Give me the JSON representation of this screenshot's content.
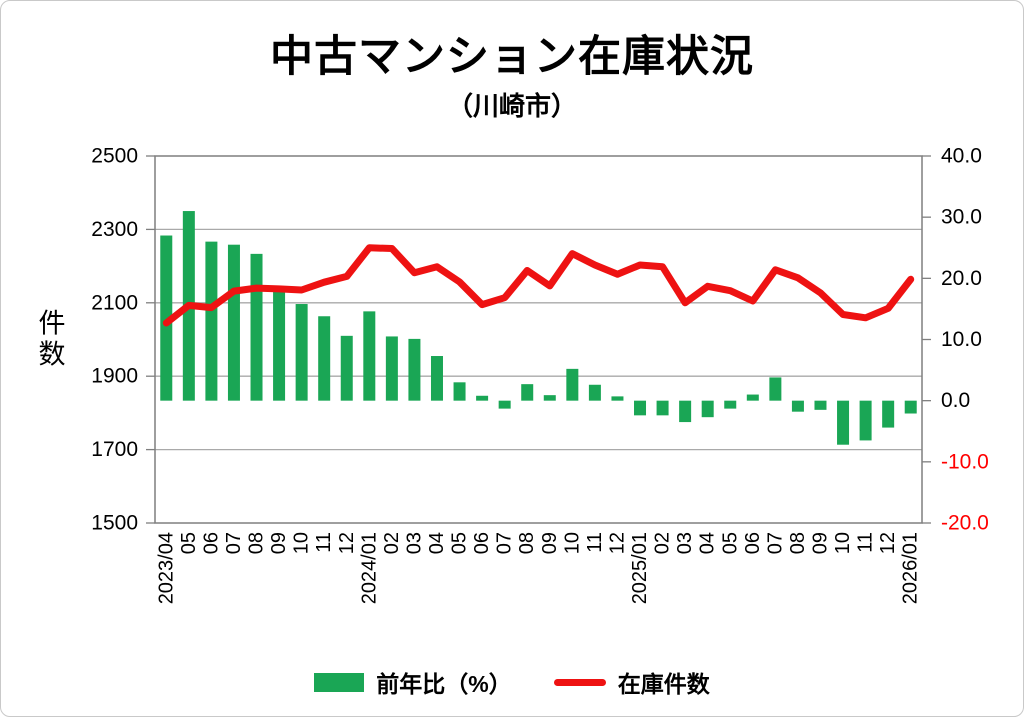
{
  "title": "中古マンション在庫状況",
  "subtitle": "（川崎市）",
  "colors": {
    "bar": "#1aa655",
    "line": "#ee1212",
    "negative_text": "#ff0000",
    "grid": "#a9a9a9",
    "border": "#7f7f7f",
    "text": "#000000"
  },
  "left_axis": {
    "label": "件数",
    "ticks": [
      "2500",
      "2300",
      "2100",
      "1900",
      "1700",
      "1500"
    ]
  },
  "right_axis": {
    "ticks": [
      "40.0",
      "30.0",
      "20.0",
      "10.0",
      "0.0",
      "-10.0",
      "-20.0"
    ]
  },
  "legend": [
    {
      "label": "前年比（%）",
      "type": "bar"
    },
    {
      "label": "在庫件数",
      "type": "line"
    }
  ],
  "chart_data": {
    "type": "combo",
    "title": "中古マンション在庫状況（川崎市）",
    "categories": [
      "2023/04",
      "05",
      "06",
      "07",
      "08",
      "09",
      "10",
      "11",
      "12",
      "2024/01",
      "02",
      "03",
      "04",
      "05",
      "06",
      "07",
      "08",
      "09",
      "10",
      "11",
      "12",
      "2025/01",
      "02",
      "03",
      "04",
      "05",
      "06",
      "07",
      "08",
      "09",
      "10",
      "11",
      "12",
      "2026/01"
    ],
    "series": [
      {
        "name": "前年比（%）",
        "type": "bar",
        "axis": "right",
        "values": [
          27.0,
          31.0,
          26.0,
          25.5,
          24.0,
          18.5,
          15.8,
          13.8,
          10.6,
          14.6,
          10.5,
          10.1,
          7.3,
          3.0,
          0.8,
          -1.3,
          2.7,
          0.9,
          5.2,
          2.6,
          0.7,
          -2.4,
          -2.4,
          -3.5,
          -2.7,
          -1.3,
          1.0,
          3.8,
          -1.8,
          -1.5,
          -7.2,
          -6.5,
          -4.4,
          -2.1
        ]
      },
      {
        "name": "在庫件数",
        "type": "line",
        "axis": "left",
        "values": [
          2045,
          2093,
          2087,
          2132,
          2140,
          2138,
          2135,
          2156,
          2172,
          2250,
          2248,
          2182,
          2198,
          2157,
          2095,
          2114,
          2188,
          2146,
          2234,
          2203,
          2178,
          2203,
          2198,
          2100,
          2145,
          2133,
          2105,
          2190,
          2168,
          2127,
          2068,
          2059,
          2085,
          2164
        ]
      }
    ],
    "left_ylim": [
      1500,
      2500
    ],
    "right_ylim": [
      -20,
      40
    ],
    "grid": true,
    "legend_position": "bottom"
  }
}
